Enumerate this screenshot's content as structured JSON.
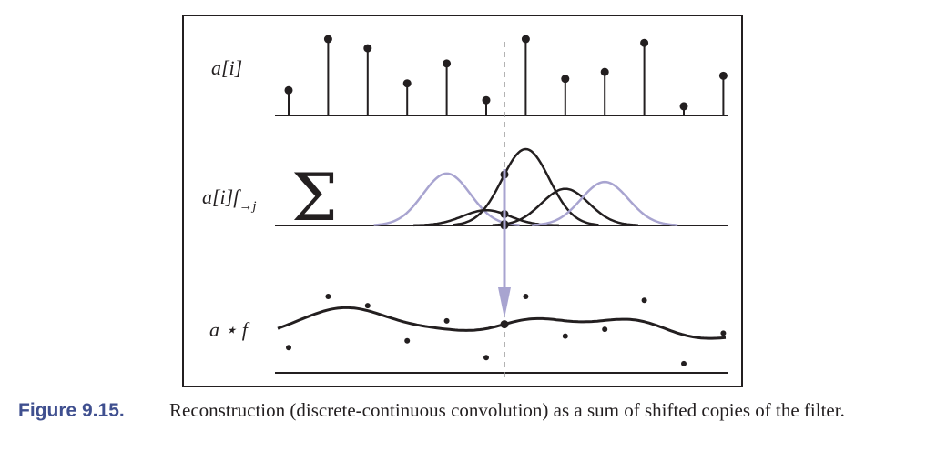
{
  "figure": {
    "labels": {
      "samples": "a[i]",
      "shifted_base": "a[i]f",
      "shifted_sub": "→j",
      "sigma": "Σ",
      "convolution": "a ⋆ f"
    },
    "colors": {
      "ink": "#231f20",
      "highlight": "#a8a4d0",
      "guide": "#9a9a9a"
    },
    "samples": [
      0.33,
      1.0,
      0.88,
      0.42,
      0.68,
      0.2,
      1.0,
      0.48,
      0.57,
      0.95,
      0.12,
      0.52
    ],
    "highlight_samples": [
      4,
      8
    ]
  },
  "caption": {
    "title": "Figure 9.15.",
    "text": "Reconstruction (discrete-continuous convolution) as a sum of shifted copies of the filter."
  }
}
